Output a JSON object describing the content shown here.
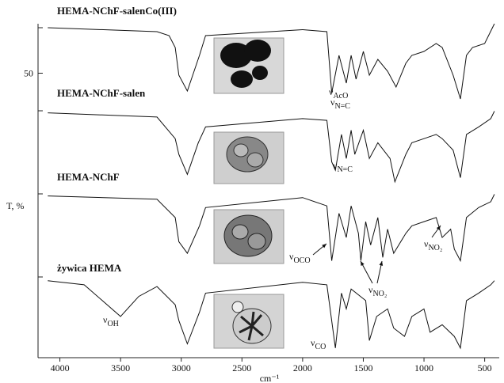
{
  "chart_data": [
    {
      "type": "line",
      "title": "HEMA-NChF-salenCo(III)",
      "x": [
        4100,
        3200,
        3100,
        3050,
        3020,
        2950,
        2850,
        2800,
        2000,
        1800,
        1760,
        1700,
        1640,
        1600,
        1560,
        1500,
        1450,
        1380,
        1300,
        1230,
        1150,
        1100,
        1000,
        900,
        850,
        760,
        700,
        650,
        600,
        500,
        420
      ],
      "values": [
        73,
        71,
        69,
        63,
        49,
        41,
        59,
        69,
        72,
        71,
        40,
        59,
        45,
        59,
        47,
        61,
        49,
        57,
        51,
        43,
        55,
        59,
        61,
        65,
        63,
        49,
        37,
        59,
        63,
        65,
        75
      ],
      "color": "#111111",
      "xlim": [
        4180,
        380
      ],
      "ylim": [
        35,
        75
      ],
      "yticks": [
        50
      ],
      "annotations": [
        {
          "symbol": "ν",
          "sub": "AcO"
        },
        {
          "symbol": "ν",
          "sub": "N=C"
        }
      ]
    },
    {
      "type": "line",
      "title": "HEMA-NChF-salen",
      "x": [
        4100,
        3200,
        3050,
        3020,
        2950,
        2860,
        2800,
        2000,
        1800,
        1760,
        1730,
        1680,
        1640,
        1600,
        1570,
        1500,
        1450,
        1380,
        1280,
        1240,
        1150,
        1100,
        1000,
        900,
        850,
        760,
        700,
        650,
        550,
        450,
        420
      ],
      "values": [
        88,
        83,
        57,
        38,
        14,
        52,
        71,
        81,
        79,
        29,
        19,
        62,
        33,
        67,
        38,
        67,
        33,
        52,
        33,
        5,
        38,
        52,
        57,
        62,
        57,
        43,
        10,
        62,
        71,
        81,
        90
      ],
      "color": "#111111",
      "xlim": [
        4180,
        380
      ],
      "ylim": [
        0,
        100
      ],
      "annotations": [
        {
          "symbol": "ν",
          "sub": "N=C"
        }
      ]
    },
    {
      "type": "line",
      "title": "HEMA-NChF",
      "y_label": "T, %",
      "x": [
        4100,
        3200,
        3050,
        3020,
        2950,
        2850,
        2800,
        2000,
        1800,
        1760,
        1700,
        1640,
        1600,
        1540,
        1520,
        1480,
        1440,
        1380,
        1340,
        1300,
        1250,
        1150,
        1100,
        1000,
        900,
        850,
        780,
        750,
        700,
        650,
        550,
        450,
        420
      ],
      "values": [
        88,
        84,
        62,
        33,
        19,
        52,
        74,
        86,
        76,
        10,
        67,
        38,
        76,
        43,
        10,
        57,
        29,
        62,
        14,
        48,
        19,
        43,
        52,
        57,
        62,
        38,
        48,
        24,
        10,
        62,
        74,
        81,
        90
      ],
      "color": "#111111",
      "xlim": [
        4180,
        380
      ],
      "ylim": [
        0,
        100
      ],
      "annotations": [
        {
          "symbol": "ν",
          "sub": "OCO"
        },
        {
          "symbol": "ν",
          "sub": "NO₂"
        },
        {
          "symbol": "ν",
          "sub": "NO₂"
        }
      ]
    },
    {
      "type": "line",
      "title": "żywica HEMA",
      "x_label": "cm⁻¹",
      "x": [
        4100,
        3800,
        3650,
        3500,
        3350,
        3200,
        3050,
        3020,
        2950,
        2850,
        2800,
        2000,
        1800,
        1730,
        1680,
        1640,
        1600,
        1480,
        1450,
        1390,
        1300,
        1250,
        1160,
        1100,
        1000,
        950,
        850,
        750,
        700,
        650,
        550,
        450,
        420
      ],
      "values": [
        86,
        81,
        62,
        43,
        67,
        79,
        57,
        38,
        10,
        48,
        71,
        84,
        81,
        5,
        71,
        52,
        76,
        62,
        14,
        43,
        52,
        29,
        19,
        43,
        52,
        24,
        33,
        19,
        5,
        62,
        71,
        81,
        86
      ],
      "color": "#111111",
      "xlim": [
        4180,
        380
      ],
      "ylim": [
        0,
        100
      ],
      "xticks": [
        4000,
        3500,
        3000,
        2500,
        2000,
        1500,
        1000,
        500
      ],
      "annotations": [
        {
          "symbol": "ν",
          "sub": "OH"
        },
        {
          "symbol": "ν",
          "sub": "CO"
        }
      ]
    }
  ]
}
